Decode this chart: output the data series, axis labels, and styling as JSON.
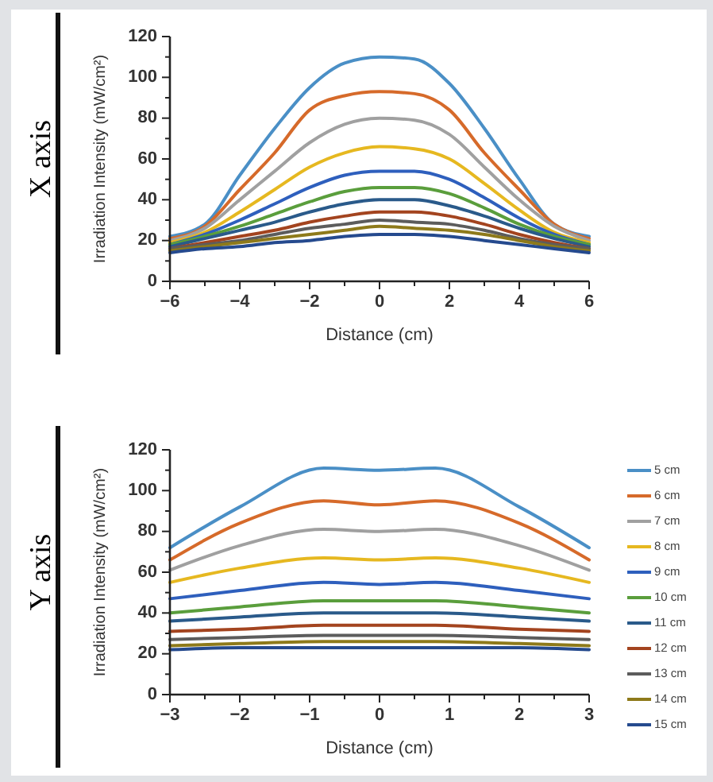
{
  "chart_data": [
    {
      "type": "line",
      "title": "X axis",
      "xlabel": "Distance (cm)",
      "ylabel": "Irradiation Intensity (mW/cm²)",
      "x": [
        -6,
        -5,
        -4,
        -3,
        -2,
        -1,
        0,
        1,
        2,
        3,
        4,
        5,
        6
      ],
      "xlim": [
        -6,
        6
      ],
      "xticks": [
        -6,
        {
          "value": -5,
          "label": null
        },
        -4,
        {
          "value": -3,
          "label": null
        },
        -2,
        {
          "value": -1,
          "label": null
        },
        0,
        {
          "value": 1,
          "label": null
        },
        2,
        {
          "value": 3,
          "label": null
        },
        4,
        {
          "value": 5,
          "label": null
        },
        6
      ],
      "ylim": [
        0,
        120
      ],
      "yticks": [
        0,
        {
          "value": 10,
          "label": null
        },
        20,
        {
          "value": 30,
          "label": null
        },
        40,
        {
          "value": 50,
          "label": null
        },
        60,
        {
          "value": 70,
          "label": null
        },
        80,
        {
          "value": 90,
          "label": null
        },
        100,
        {
          "value": 110,
          "label": null
        },
        120
      ],
      "grid": false,
      "legend": false,
      "marker": "none",
      "line_style": "solid",
      "series": [
        {
          "color": "#4a8fc6",
          "values": [
            22,
            28,
            52,
            75,
            95,
            107,
            110,
            109,
            97,
            75,
            50,
            28,
            22
          ]
        },
        {
          "color": "#d66a2a",
          "values": [
            21,
            27,
            45,
            63,
            84,
            91,
            93,
            92,
            84,
            63,
            45,
            28,
            21
          ]
        },
        {
          "color": "#a0a0a0",
          "values": [
            20,
            26,
            40,
            54,
            68,
            77,
            80,
            79,
            72,
            56,
            40,
            27,
            20
          ]
        },
        {
          "color": "#e6b820",
          "values": [
            19,
            24,
            34,
            45,
            56,
            63,
            66,
            65,
            60,
            48,
            35,
            24,
            19
          ]
        },
        {
          "color": "#2e5fbd",
          "values": [
            18,
            23,
            30,
            38,
            46,
            52,
            54,
            54,
            50,
            41,
            31,
            23,
            18
          ]
        },
        {
          "color": "#5a9e3c",
          "values": [
            18,
            22,
            27,
            33,
            39,
            44,
            46,
            46,
            43,
            36,
            28,
            22,
            18
          ]
        },
        {
          "color": "#2a5a8a",
          "values": [
            17,
            21,
            25,
            29,
            34,
            38,
            40,
            40,
            37,
            32,
            26,
            21,
            17
          ]
        },
        {
          "color": "#a3441f",
          "values": [
            16,
            19,
            22,
            25,
            29,
            32,
            34,
            34,
            32,
            28,
            23,
            19,
            16
          ]
        },
        {
          "color": "#5c5c5c",
          "values": [
            16,
            18,
            20,
            23,
            26,
            28,
            30,
            29,
            28,
            25,
            21,
            18,
            16
          ]
        },
        {
          "color": "#8e7a1a",
          "values": [
            15,
            17,
            19,
            21,
            23,
            25,
            27,
            26,
            25,
            23,
            20,
            17,
            15
          ]
        },
        {
          "color": "#254a8e",
          "values": [
            14,
            16,
            17,
            19,
            20,
            22,
            23,
            23,
            22,
            20,
            18,
            16,
            14
          ]
        }
      ]
    },
    {
      "type": "line",
      "title": "Y axis",
      "xlabel": "Distance (cm)",
      "ylabel": "Irradiation Intensity (mW/cm²)",
      "x": [
        -3,
        -2,
        -0.8,
        0,
        0.8,
        2,
        3
      ],
      "xlim": [
        -3,
        3
      ],
      "xticks": [
        -3,
        {
          "value": -2.5,
          "label": null
        },
        -2,
        {
          "value": -1.5,
          "label": null
        },
        -1,
        {
          "value": -0.5,
          "label": null
        },
        0,
        {
          "value": 0.5,
          "label": null
        },
        1,
        {
          "value": 1.5,
          "label": null
        },
        2,
        {
          "value": 2.5,
          "label": null
        },
        3
      ],
      "ylim": [
        0,
        120
      ],
      "yticks": [
        0,
        {
          "value": 10,
          "label": null
        },
        20,
        {
          "value": 30,
          "label": null
        },
        40,
        {
          "value": 50,
          "label": null
        },
        60,
        {
          "value": 70,
          "label": null
        },
        80,
        {
          "value": 90,
          "label": null
        },
        100,
        {
          "value": 110,
          "label": null
        },
        120
      ],
      "grid": false,
      "legend": "right",
      "marker": "none",
      "line_style": "solid",
      "series": [
        {
          "name": "5 cm",
          "color": "#4a8fc6",
          "values": [
            72,
            92,
            111,
            110,
            111,
            92,
            72
          ]
        },
        {
          "name": "6 cm",
          "color": "#d66a2a",
          "values": [
            66,
            84,
            95,
            93,
            95,
            84,
            66
          ]
        },
        {
          "name": "7 cm",
          "color": "#a0a0a0",
          "values": [
            61,
            73,
            81,
            80,
            81,
            73,
            61
          ]
        },
        {
          "name": "8 cm",
          "color": "#e6b820",
          "values": [
            55,
            62,
            67,
            66,
            67,
            62,
            55
          ]
        },
        {
          "name": "9 cm",
          "color": "#2e5fbd",
          "values": [
            47,
            51,
            55,
            54,
            55,
            51,
            47
          ]
        },
        {
          "name": "10 cm",
          "color": "#5a9e3c",
          "values": [
            40,
            43,
            46,
            46,
            46,
            43,
            40
          ]
        },
        {
          "name": "11 cm",
          "color": "#2a5a8a",
          "values": [
            36,
            38,
            40,
            40,
            40,
            38,
            36
          ]
        },
        {
          "name": "12 cm",
          "color": "#a3441f",
          "values": [
            31,
            32,
            34,
            34,
            34,
            32,
            31
          ]
        },
        {
          "name": "13 cm",
          "color": "#5c5c5c",
          "values": [
            27,
            28,
            29,
            29,
            29,
            28,
            27
          ]
        },
        {
          "name": "14 cm",
          "color": "#8e7a1a",
          "values": [
            24,
            25,
            26,
            26,
            26,
            25,
            24
          ]
        },
        {
          "name": "15 cm",
          "color": "#254a8e",
          "values": [
            22,
            23,
            23,
            23,
            23,
            23,
            22
          ]
        }
      ]
    }
  ]
}
